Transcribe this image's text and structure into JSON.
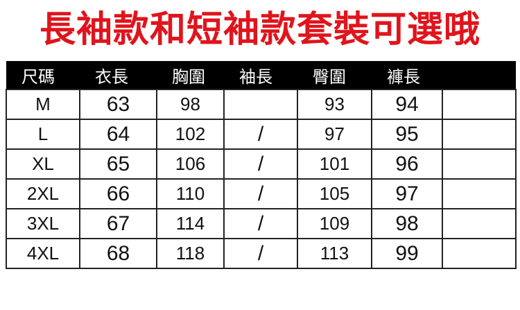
{
  "title": "長袖款和短袖款套裝可選哦",
  "headers": [
    "尺碼",
    "衣長",
    "胸圍",
    "袖長",
    "臀圍",
    "褲長",
    ""
  ],
  "rows": [
    [
      "M",
      "63",
      "98",
      "",
      "93",
      "94",
      ""
    ],
    [
      "L",
      "64",
      "102",
      "/",
      "97",
      "95",
      ""
    ],
    [
      "XL",
      "65",
      "106",
      "/",
      "101",
      "96",
      ""
    ],
    [
      "2XL",
      "66",
      "110",
      "/",
      "105",
      "97",
      ""
    ],
    [
      "3XL",
      "67",
      "114",
      "/",
      "109",
      "98",
      ""
    ],
    [
      "4XL",
      "68",
      "118",
      "/",
      "113",
      "99",
      ""
    ]
  ],
  "colors": {
    "title": "#e0141c",
    "header_bg": "#000000"
  }
}
